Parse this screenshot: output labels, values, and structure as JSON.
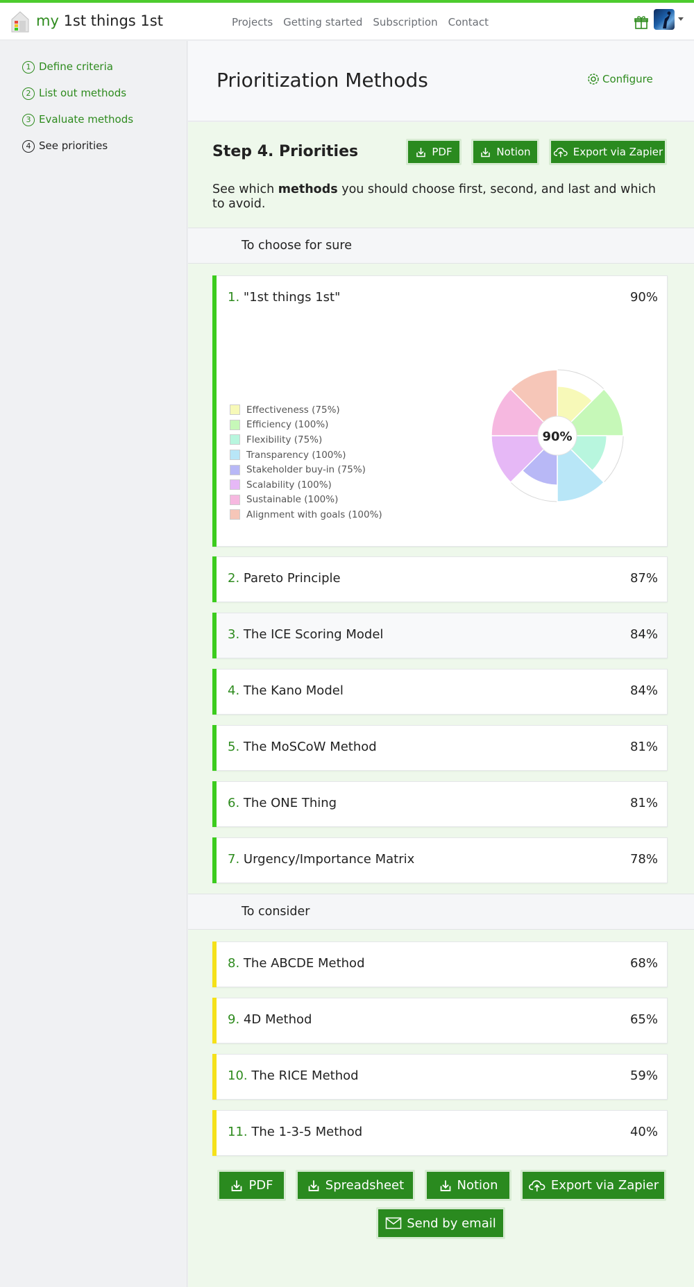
{
  "app": {
    "brand_my": "my",
    "brand_rest": " 1st things 1st"
  },
  "nav": [
    "Projects",
    "Getting started",
    "Subscription",
    "Contact"
  ],
  "sidebar": {
    "steps": [
      {
        "num": "1",
        "label": "Define criteria",
        "active": false
      },
      {
        "num": "2",
        "label": "List out methods",
        "active": false
      },
      {
        "num": "3",
        "label": "Evaluate methods",
        "active": false
      },
      {
        "num": "4",
        "label": "See priorities",
        "active": true
      }
    ]
  },
  "header": {
    "title": "Prioritization Methods",
    "configure": "Configure"
  },
  "step": {
    "title": "Step 4. Priorities",
    "top_buttons": {
      "pdf": "PDF",
      "notion": "Notion",
      "zapier": "Export via Zapier"
    },
    "desc_before": "See which ",
    "desc_bold": "methods",
    "desc_after": " you should choose first, second, and last and which to avoid."
  },
  "sections": {
    "choose": "To choose for sure",
    "consider": "To consider"
  },
  "methods": [
    {
      "num": "1.",
      "name": "\"1st things 1st\"",
      "score": "90%",
      "color": "#3ccc1e"
    },
    {
      "num": "2.",
      "name": "Pareto Principle",
      "score": "87%",
      "color": "#3ccc1e"
    },
    {
      "num": "3.",
      "name": "The ICE Scoring Model",
      "score": "84%",
      "color": "#3ccc1e"
    },
    {
      "num": "4.",
      "name": "The Kano Model",
      "score": "84%",
      "color": "#3ccc1e"
    },
    {
      "num": "5.",
      "name": "The MoSCoW Method",
      "score": "81%",
      "color": "#3ccc1e"
    },
    {
      "num": "6.",
      "name": "The ONE Thing",
      "score": "81%",
      "color": "#3ccc1e"
    },
    {
      "num": "7.",
      "name": "Urgency/Importance Matrix",
      "score": "78%",
      "color": "#3ccc1e"
    },
    {
      "num": "8.",
      "name": "The ABCDE Method",
      "score": "68%",
      "color": "#f5e11a"
    },
    {
      "num": "9.",
      "name": "4D Method",
      "score": "65%",
      "color": "#f5e11a"
    },
    {
      "num": "10.",
      "name": "The RICE Method",
      "score": "59%",
      "color": "#f5e11a"
    },
    {
      "num": "11.",
      "name": "The 1-3-5 Method",
      "score": "40%",
      "color": "#f5e11a"
    }
  ],
  "chart_data": {
    "type": "pie",
    "center_label": "90%",
    "categories": [
      "Effectiveness",
      "Efficiency",
      "Flexibility",
      "Transparency",
      "Stakeholder buy-in",
      "Scalability",
      "Sustainable",
      "Alignment with goals"
    ],
    "values": [
      75,
      100,
      75,
      100,
      75,
      100,
      100,
      100
    ],
    "legend_labels": [
      "Effectiveness (75%)",
      "Efficiency (100%)",
      "Flexibility (75%)",
      "Transparency (100%)",
      "Stakeholder buy-in (75%)",
      "Scalability (100%)",
      "Sustainable (100%)",
      "Alignment with goals (100%)"
    ],
    "colors": [
      "#f7f9b8",
      "#c6f8b8",
      "#b8f6de",
      "#b8e6f7",
      "#b8b8f6",
      "#e6b8f6",
      "#f6b8e0",
      "#f6c6b8"
    ]
  },
  "bottom_buttons": {
    "pdf": "PDF",
    "spreadsheet": "Spreadsheet",
    "notion": "Notion",
    "zapier": "Export via Zapier",
    "email": "Send by email"
  }
}
